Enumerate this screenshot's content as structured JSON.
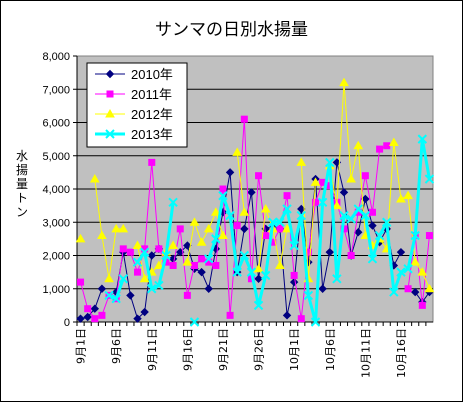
{
  "chart_data": {
    "type": "line",
    "title": "サンマの日別水揚量",
    "xlabel": "",
    "ylabel": "水揚量 トン",
    "ylim": [
      0,
      8000
    ],
    "yticks": [
      "0",
      "1,000",
      "2,000",
      "3,000",
      "4,000",
      "5,000",
      "6,000",
      "7,000",
      "8,000"
    ],
    "categories": [
      "9月1日",
      "9月2日",
      "9月3日",
      "9月4日",
      "9月5日",
      "9月6日",
      "9月7日",
      "9月8日",
      "9月9日",
      "9月10日",
      "9月11日",
      "9月12日",
      "9月13日",
      "9月14日",
      "9月15日",
      "9月16日",
      "9月17日",
      "9月18日",
      "9月19日",
      "9月20日",
      "9月21日",
      "9月22日",
      "9月23日",
      "9月24日",
      "9月25日",
      "9月26日",
      "9月27日",
      "9月28日",
      "9月29日",
      "9月30日",
      "10月1日",
      "10月2日",
      "10月3日",
      "10月4日",
      "10月5日",
      "10月6日",
      "10月7日",
      "10月8日",
      "10月9日",
      "10月10日",
      "10月11日",
      "10月12日",
      "10月13日",
      "10月14日",
      "10月15日",
      "10月16日",
      "10月17日",
      "10月18日",
      "10月19日",
      "10月20日"
    ],
    "xtick_labels": [
      "9月1日",
      "9月6日",
      "9月11日",
      "9月16日",
      "9月21日",
      "9月26日",
      "10月1日",
      "10月6日",
      "10月11日",
      "10月16日"
    ],
    "grid": true,
    "legend": "top-left",
    "plot_background": "#c0c0c0",
    "series": [
      {
        "name": "2010年",
        "color": "#000080",
        "marker": "diamond",
        "values": [
          100,
          150,
          400,
          1000,
          null,
          900,
          2100,
          800,
          100,
          300,
          2000,
          2200,
          null,
          1900,
          2100,
          2300,
          1600,
          1500,
          1000,
          2200,
          3300,
          4500,
          1500,
          2800,
          3900,
          1300,
          2800,
          2900,
          2800,
          200,
          1200,
          3400,
          1800,
          4300,
          1000,
          2100,
          4800,
          3900,
          2000,
          2700,
          3700,
          2900,
          2400,
          2800,
          1700,
          2100,
          null,
          900,
          600,
          900
        ]
      },
      {
        "name": "2011年",
        "color": "#ff00ff",
        "marker": "square",
        "values": [
          1200,
          400,
          100,
          200,
          800,
          700,
          2200,
          2100,
          1500,
          2200,
          4800,
          2200,
          1800,
          1700,
          2800,
          800,
          1700,
          1900,
          1800,
          1700,
          4000,
          200,
          2900,
          6100,
          1300,
          4400,
          2600,
          2400,
          2800,
          3800,
          1400,
          100,
          2100,
          3600,
          4200,
          4100,
          3600,
          2800,
          2000,
          3300,
          4400,
          3300,
          5200,
          5300,
          null,
          null,
          1000,
          2600,
          500,
          2600
        ]
      },
      {
        "name": "2012年",
        "color": "#ffff00",
        "marker": "triangle",
        "values": [
          2500,
          null,
          4300,
          2600,
          1300,
          2800,
          2800,
          null,
          2300,
          1300,
          1500,
          1700,
          2100,
          2300,
          null,
          1800,
          3000,
          2400,
          2800,
          3300,
          2600,
          null,
          5100,
          3300,
          null,
          1600,
          3400,
          2800,
          1700,
          2800,
          null,
          4800,
          1300,
          4200,
          null,
          4700,
          3500,
          7200,
          4300,
          5300,
          2600,
          2300,
          2500,
          2200,
          5400,
          3700,
          3800,
          1800,
          1500,
          1000
        ]
      },
      {
        "name": "2013年",
        "color": "#00ffff",
        "marker": "x",
        "values": [
          null,
          null,
          null,
          null,
          800,
          700,
          1300,
          null,
          1800,
          2100,
          1000,
          1100,
          2000,
          3600,
          null,
          null,
          0,
          null,
          1900,
          2500,
          3800,
          3200,
          1500,
          2000,
          1500,
          500,
          1400,
          3000,
          3000,
          3400,
          2300,
          3200,
          800,
          0,
          3600,
          4800,
          1300,
          3200,
          3100,
          3400,
          3200,
          1900,
          2600,
          3000,
          900,
          1500,
          1600,
          2600,
          5500,
          4300
        ]
      }
    ]
  }
}
